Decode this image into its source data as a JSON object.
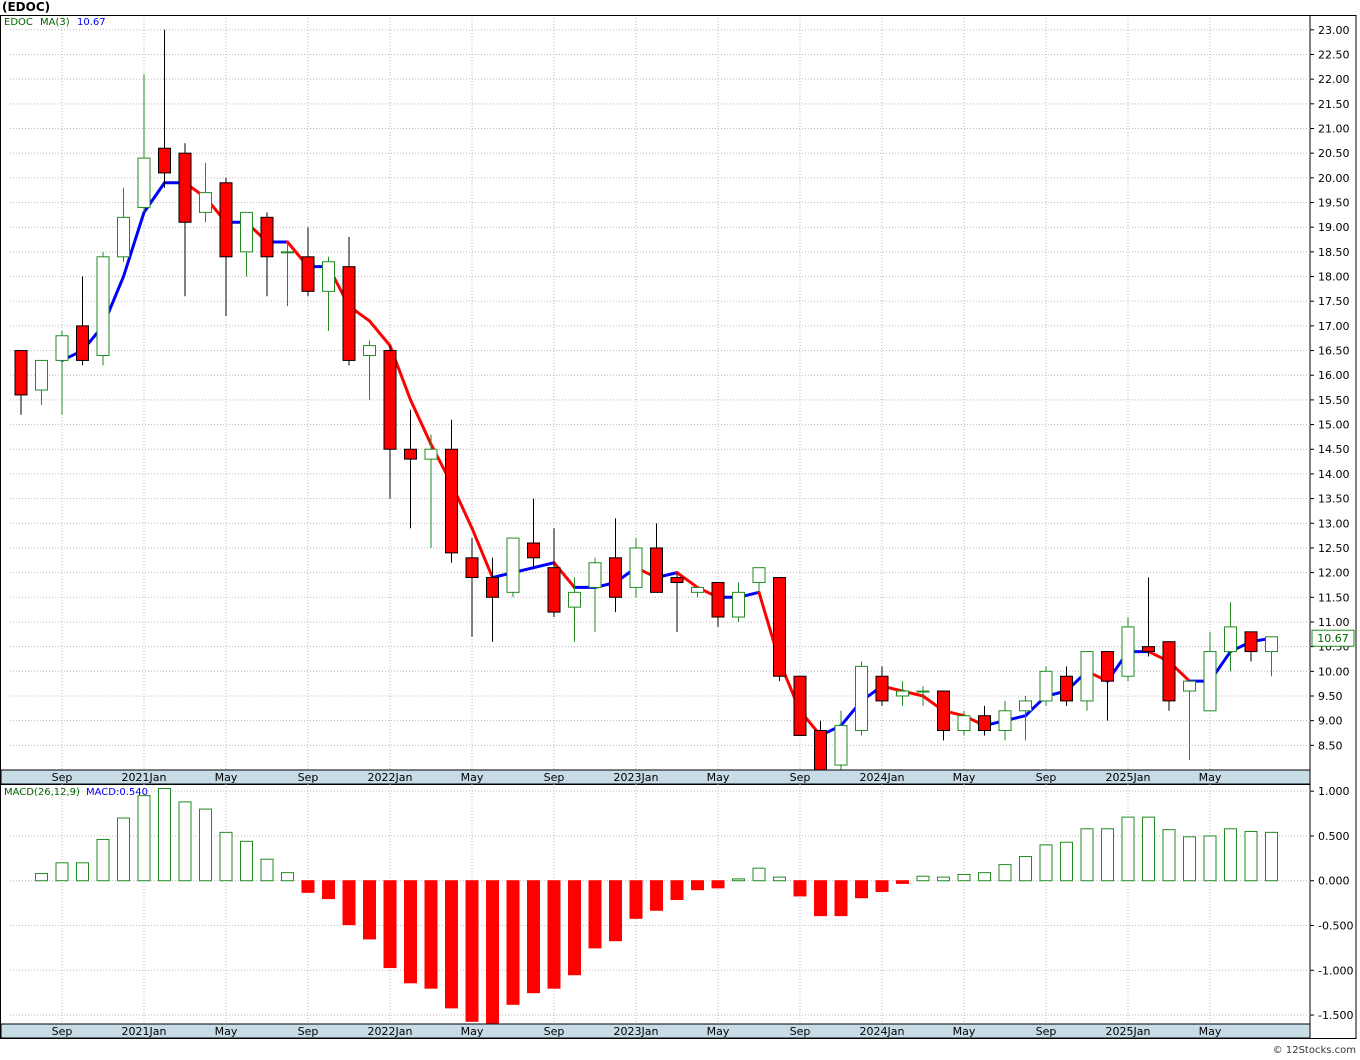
{
  "header": {
    "symbol_title": "(EDOC)"
  },
  "footer": {
    "credit": "© 12Stocks.com"
  },
  "colors": {
    "up": "#228b22",
    "down": "#ff0000",
    "ma_up": "#0000ff",
    "ma_down": "#ff0000",
    "frame": "#000000",
    "axis_band": "#c8dce8",
    "grid": "#bbbbbb",
    "legend_symbol": "#006400",
    "legend_value": "#0000ff",
    "price_tag_bg": "#ffffff",
    "price_tag_border": "#228b22",
    "price_tag_text": "#006400"
  },
  "chart_data": [
    {
      "type": "candlestick",
      "legend": {
        "symbol": "EDOC",
        "ma_label": "MA(3)",
        "ma_value": "10.67"
      },
      "last_price_label": "10.67",
      "ylim": [
        8.0,
        23.3
      ],
      "y_ticks": [
        "8.50",
        "9.00",
        "9.50",
        "10.00",
        "10.50",
        "11.00",
        "11.50",
        "12.00",
        "12.50",
        "13.00",
        "13.50",
        "14.00",
        "14.50",
        "15.00",
        "15.50",
        "16.00",
        "16.50",
        "17.00",
        "17.50",
        "18.00",
        "18.50",
        "19.00",
        "19.50",
        "20.00",
        "20.50",
        "21.00",
        "21.50",
        "22.00",
        "22.50",
        "23.00"
      ],
      "x_ticks": [
        {
          "label": "Sep",
          "i": 2
        },
        {
          "label": "2021Jan",
          "i": 6
        },
        {
          "label": "May",
          "i": 10
        },
        {
          "label": "Sep",
          "i": 14
        },
        {
          "label": "2022Jan",
          "i": 18
        },
        {
          "label": "May",
          "i": 22
        },
        {
          "label": "Sep",
          "i": 26
        },
        {
          "label": "2023Jan",
          "i": 30
        },
        {
          "label": "May",
          "i": 34
        },
        {
          "label": "Sep",
          "i": 38
        },
        {
          "label": "2024Jan",
          "i": 42
        },
        {
          "label": "May",
          "i": 46
        },
        {
          "label": "Sep",
          "i": 50
        },
        {
          "label": "2025Jan",
          "i": 54
        },
        {
          "label": "May",
          "i": 58
        }
      ],
      "candles": [
        {
          "o": 16.5,
          "h": 16.5,
          "l": 15.2,
          "c": 15.6
        },
        {
          "o": 15.7,
          "h": 16.3,
          "l": 15.4,
          "c": 16.3
        },
        {
          "o": 16.3,
          "h": 16.9,
          "l": 15.2,
          "c": 16.8
        },
        {
          "o": 17.0,
          "h": 18.0,
          "l": 16.2,
          "c": 16.3
        },
        {
          "o": 16.4,
          "h": 18.5,
          "l": 16.2,
          "c": 18.4
        },
        {
          "o": 18.4,
          "h": 19.8,
          "l": 18.3,
          "c": 19.2
        },
        {
          "o": 19.4,
          "h": 22.1,
          "l": 19.3,
          "c": 20.4
        },
        {
          "o": 20.6,
          "h": 23.0,
          "l": 19.8,
          "c": 20.1
        },
        {
          "o": 20.5,
          "h": 20.7,
          "l": 17.6,
          "c": 19.1
        },
        {
          "o": 19.3,
          "h": 20.3,
          "l": 19.1,
          "c": 19.7
        },
        {
          "o": 19.9,
          "h": 20.0,
          "l": 17.2,
          "c": 18.4
        },
        {
          "o": 18.5,
          "h": 19.3,
          "l": 18.0,
          "c": 19.3
        },
        {
          "o": 19.2,
          "h": 19.3,
          "l": 17.6,
          "c": 18.4
        },
        {
          "o": 18.5,
          "h": 18.7,
          "l": 17.4,
          "c": 18.5
        },
        {
          "o": 18.4,
          "h": 19.0,
          "l": 17.6,
          "c": 17.7
        },
        {
          "o": 17.7,
          "h": 18.4,
          "l": 16.9,
          "c": 18.3
        },
        {
          "o": 18.2,
          "h": 18.8,
          "l": 16.2,
          "c": 16.3
        },
        {
          "o": 16.4,
          "h": 16.7,
          "l": 15.5,
          "c": 16.6
        },
        {
          "o": 16.5,
          "h": 16.6,
          "l": 13.5,
          "c": 14.5
        },
        {
          "o": 14.5,
          "h": 15.3,
          "l": 12.9,
          "c": 14.3
        },
        {
          "o": 14.3,
          "h": 14.8,
          "l": 12.5,
          "c": 14.5
        },
        {
          "o": 14.5,
          "h": 15.1,
          "l": 12.2,
          "c": 12.4
        },
        {
          "o": 12.3,
          "h": 12.7,
          "l": 10.7,
          "c": 11.9
        },
        {
          "o": 11.9,
          "h": 12.3,
          "l": 10.6,
          "c": 11.5
        },
        {
          "o": 11.6,
          "h": 12.7,
          "l": 11.5,
          "c": 12.7
        },
        {
          "o": 12.6,
          "h": 13.5,
          "l": 12.1,
          "c": 12.3
        },
        {
          "o": 12.1,
          "h": 12.9,
          "l": 11.1,
          "c": 11.2
        },
        {
          "o": 11.3,
          "h": 11.9,
          "l": 10.6,
          "c": 11.6
        },
        {
          "o": 11.7,
          "h": 12.3,
          "l": 10.8,
          "c": 12.2
        },
        {
          "o": 12.3,
          "h": 13.1,
          "l": 11.2,
          "c": 11.5
        },
        {
          "o": 11.7,
          "h": 12.7,
          "l": 11.5,
          "c": 12.5
        },
        {
          "o": 12.5,
          "h": 13.0,
          "l": 11.6,
          "c": 11.6
        },
        {
          "o": 11.9,
          "h": 12.0,
          "l": 10.8,
          "c": 11.8
        },
        {
          "o": 11.6,
          "h": 11.7,
          "l": 11.5,
          "c": 11.7
        },
        {
          "o": 11.8,
          "h": 11.8,
          "l": 10.9,
          "c": 11.1
        },
        {
          "o": 11.1,
          "h": 11.8,
          "l": 11.0,
          "c": 11.6
        },
        {
          "o": 11.8,
          "h": 12.1,
          "l": 11.6,
          "c": 12.1
        },
        {
          "o": 11.9,
          "h": 11.9,
          "l": 9.8,
          "c": 9.9
        },
        {
          "o": 9.9,
          "h": 9.9,
          "l": 8.7,
          "c": 8.7
        },
        {
          "o": 8.8,
          "h": 9.0,
          "l": 7.9,
          "c": 7.9
        },
        {
          "o": 8.1,
          "h": 9.2,
          "l": 8.0,
          "c": 8.9
        },
        {
          "o": 8.8,
          "h": 10.2,
          "l": 8.7,
          "c": 10.1
        },
        {
          "o": 9.9,
          "h": 10.1,
          "l": 9.3,
          "c": 9.4
        },
        {
          "o": 9.5,
          "h": 9.8,
          "l": 9.3,
          "c": 9.6
        },
        {
          "o": 9.6,
          "h": 9.7,
          "l": 9.3,
          "c": 9.6
        },
        {
          "o": 9.6,
          "h": 9.6,
          "l": 8.6,
          "c": 8.8
        },
        {
          "o": 8.8,
          "h": 9.2,
          "l": 8.7,
          "c": 9.1
        },
        {
          "o": 9.1,
          "h": 9.3,
          "l": 8.7,
          "c": 8.8
        },
        {
          "o": 8.8,
          "h": 9.4,
          "l": 8.6,
          "c": 9.2
        },
        {
          "o": 9.2,
          "h": 9.5,
          "l": 8.6,
          "c": 9.4
        },
        {
          "o": 9.4,
          "h": 10.1,
          "l": 9.3,
          "c": 10.0
        },
        {
          "o": 9.9,
          "h": 10.1,
          "l": 9.3,
          "c": 9.4
        },
        {
          "o": 9.4,
          "h": 10.4,
          "l": 9.2,
          "c": 10.4
        },
        {
          "o": 10.4,
          "h": 10.4,
          "l": 9.0,
          "c": 9.8
        },
        {
          "o": 9.9,
          "h": 11.1,
          "l": 9.8,
          "c": 10.9
        },
        {
          "o": 10.5,
          "h": 11.9,
          "l": 10.3,
          "c": 10.4
        },
        {
          "o": 10.6,
          "h": 10.6,
          "l": 9.2,
          "c": 9.4
        },
        {
          "o": 9.6,
          "h": 9.7,
          "l": 8.2,
          "c": 9.8
        },
        {
          "o": 9.2,
          "h": 10.8,
          "l": 9.2,
          "c": 10.4
        },
        {
          "o": 10.4,
          "h": 11.4,
          "l": 10.0,
          "c": 10.9
        },
        {
          "o": 10.8,
          "h": 10.8,
          "l": 10.2,
          "c": 10.4
        },
        {
          "o": 10.4,
          "h": 10.7,
          "l": 9.9,
          "c": 10.7
        }
      ],
      "ma3": [
        null,
        null,
        16.3,
        16.5,
        17.0,
        18.0,
        19.3,
        19.9,
        19.9,
        19.6,
        19.1,
        19.1,
        18.7,
        18.7,
        18.2,
        18.2,
        17.4,
        17.1,
        16.6,
        15.5,
        14.6,
        13.8,
        12.9,
        11.9,
        12.0,
        12.1,
        12.2,
        11.7,
        11.7,
        11.8,
        12.1,
        11.9,
        12.0,
        11.7,
        11.5,
        11.5,
        11.6,
        10.2,
        9.2,
        8.7,
        8.9,
        9.4,
        9.7,
        9.6,
        9.5,
        9.2,
        9.1,
        8.9,
        9.0,
        9.1,
        9.5,
        9.6,
        10.0,
        9.8,
        10.4,
        10.4,
        10.2,
        9.8,
        9.8,
        10.4,
        10.6,
        10.67
      ]
    },
    {
      "type": "bar",
      "legend": {
        "label": "MACD(26,12,9)",
        "value_label": "MACD:0.540"
      },
      "ylim": [
        -1.6,
        1.08
      ],
      "y_ticks": [
        "1.000",
        "0.500",
        "0.000",
        "-0.500",
        "-1.000",
        "-1.500"
      ],
      "x_ticks": [
        {
          "label": "Sep",
          "i": 2
        },
        {
          "label": "2021Jan",
          "i": 6
        },
        {
          "label": "May",
          "i": 10
        },
        {
          "label": "Sep",
          "i": 14
        },
        {
          "label": "2022Jan",
          "i": 18
        },
        {
          "label": "May",
          "i": 22
        },
        {
          "label": "Sep",
          "i": 26
        },
        {
          "label": "2023Jan",
          "i": 30
        },
        {
          "label": "May",
          "i": 34
        },
        {
          "label": "Sep",
          "i": 38
        },
        {
          "label": "2024Jan",
          "i": 42
        },
        {
          "label": "May",
          "i": 46
        },
        {
          "label": "Sep",
          "i": 50
        },
        {
          "label": "2025Jan",
          "i": 54
        },
        {
          "label": "May",
          "i": 58
        }
      ],
      "values": [
        null,
        0.08,
        0.2,
        0.2,
        0.46,
        0.7,
        0.95,
        1.03,
        0.88,
        0.8,
        0.54,
        0.44,
        0.24,
        0.09,
        -0.13,
        -0.2,
        -0.49,
        -0.65,
        -0.97,
        -1.14,
        -1.2,
        -1.42,
        -1.57,
        -1.62,
        -1.38,
        -1.25,
        -1.2,
        -1.05,
        -0.75,
        -0.67,
        -0.42,
        -0.33,
        -0.21,
        -0.1,
        -0.08,
        0.02,
        0.14,
        0.04,
        -0.17,
        -0.39,
        -0.39,
        -0.19,
        -0.12,
        -0.03,
        0.05,
        0.04,
        0.07,
        0.09,
        0.18,
        0.27,
        0.4,
        0.43,
        0.58,
        0.58,
        0.71,
        0.71,
        0.57,
        0.49,
        0.5,
        0.58,
        0.55,
        0.54
      ]
    }
  ]
}
